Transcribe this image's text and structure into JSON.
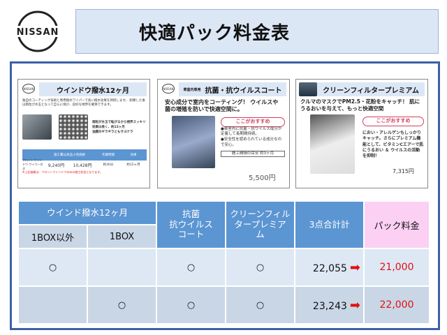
{
  "brand": {
    "logo_text": "NISSAN"
  },
  "header": {
    "title": "快適パック料金表"
  },
  "cards": [
    {
      "title": "ウインドウ撥水12ヶ月",
      "desc": "独自のコーティング技術と専用撥水ワイパーで高い撥水効果を持続します。 耐摩した後は雨粒が水玉となって自らに飛び、良好な視界を確保できます。",
      "bullets": [
        "雨粒が水玉で転がるから視界スッキリ",
        "効果は長く、約12ヶ月",
        "油膜のギラギラともサヨナラ"
      ],
      "table_header": "施工費込商品小売価格",
      "cols": [
        "1BOX以外",
        "1BOX",
        "作業時間",
        "効果"
      ],
      "row_label": "フロントウインドウ ワイパー付き",
      "values": [
        "9,240円",
        "10,428円",
        "約30分",
        "約12ヶ月"
      ],
      "note": "※上記価格は、フロントウインドウのみの施工料金となります。"
    },
    {
      "tag": "車室内専用",
      "title": "抗菌・抗ウイルスコート",
      "headline": "安心成分で室内をコーティング！ ウイルスや菌の増殖を防いで快適空間に。",
      "pill": "ここがおすすめ",
      "bullets": [
        "●車室内に抗菌・抗ウイルス成分が定着して長期間持続。",
        "●安全性を認められている成分なので安心。"
      ],
      "duration": "施工間隔の目安 約3ヶ月",
      "price": "5,500円"
    },
    {
      "title": "クリーンフィルタープレミアム",
      "headline": "クルマのマスクでPM2.5・花粉をキャッチ！ 肌にうるおいを与えて、もっと快適空間",
      "pill": "ここがおすすめ",
      "body": "におい・アレルゲンもしっかりキャッチ。さらにプレミアム機能として、ビタミンCエアーで肌にうるおい ＆ ウイルスの活動を抑制！",
      "price": "7,315円"
    }
  ],
  "table": {
    "headers": {
      "window": "ウインド撥水12ヶ月",
      "non_1box": "1BOX以外",
      "one_box": "1BOX",
      "antibac": "抗菌\n抗ウイルス\nコート",
      "filter": "クリーンフィル\nタープレミア\nム",
      "total": "3点合計計",
      "pack": "パック料金"
    },
    "rows": [
      {
        "non_1box": "○",
        "one_box": "",
        "antibac": "○",
        "filter": "○",
        "total": "22,055",
        "pack": "21,000"
      },
      {
        "non_1box": "",
        "one_box": "○",
        "antibac": "○",
        "filter": "○",
        "total": "23,243",
        "pack": "22,000"
      }
    ]
  },
  "colors": {
    "header_blue": "#5b95d2",
    "pack_pink": "#fbd0f3",
    "price_red": "#e01010",
    "frame": "#3d5fa8"
  }
}
